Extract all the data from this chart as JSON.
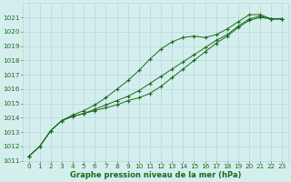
{
  "xlabel": "Graphe pression niveau de la mer (hPa)",
  "ylim": [
    1011,
    1022
  ],
  "xlim": [
    -0.5,
    23.5
  ],
  "yticks": [
    1011,
    1012,
    1013,
    1014,
    1015,
    1016,
    1017,
    1018,
    1019,
    1020,
    1021
  ],
  "xticks": [
    0,
    1,
    2,
    3,
    4,
    5,
    6,
    7,
    8,
    9,
    10,
    11,
    12,
    13,
    14,
    15,
    16,
    17,
    18,
    19,
    20,
    21,
    22,
    23
  ],
  "bg_color": "#d4eeee",
  "grid_color": "#b8d8d8",
  "line_color": "#1a6b1a",
  "series": [
    [
      1011.3,
      1012.0,
      1013.1,
      1013.8,
      1014.1,
      1014.3,
      1014.5,
      1014.7,
      1014.9,
      1015.2,
      1015.4,
      1015.7,
      1016.2,
      1016.8,
      1017.4,
      1018.0,
      1018.6,
      1019.2,
      1019.7,
      1020.3,
      1020.8,
      1021.0,
      1020.9,
      1020.9
    ],
    [
      1011.3,
      1012.0,
      1013.1,
      1013.8,
      1014.1,
      1014.3,
      1014.6,
      1014.9,
      1015.2,
      1015.5,
      1015.9,
      1016.4,
      1016.9,
      1017.4,
      1017.9,
      1018.4,
      1018.9,
      1019.4,
      1019.8,
      1020.4,
      1020.9,
      1021.1,
      1020.9,
      1020.9
    ],
    [
      1011.3,
      1012.0,
      1013.1,
      1013.8,
      1014.2,
      1014.5,
      1014.9,
      1015.4,
      1016.0,
      1016.6,
      1017.3,
      1018.1,
      1018.8,
      1019.3,
      1019.6,
      1019.7,
      1019.6,
      1019.8,
      1020.2,
      1020.7,
      1021.2,
      1021.2,
      1020.9,
      1020.9
    ]
  ],
  "marker": "+",
  "markersize": 3,
  "linewidth": 0.7,
  "font_color": "#1a6b1a",
  "tick_fontsize": 5.2,
  "label_fontsize": 6.0
}
